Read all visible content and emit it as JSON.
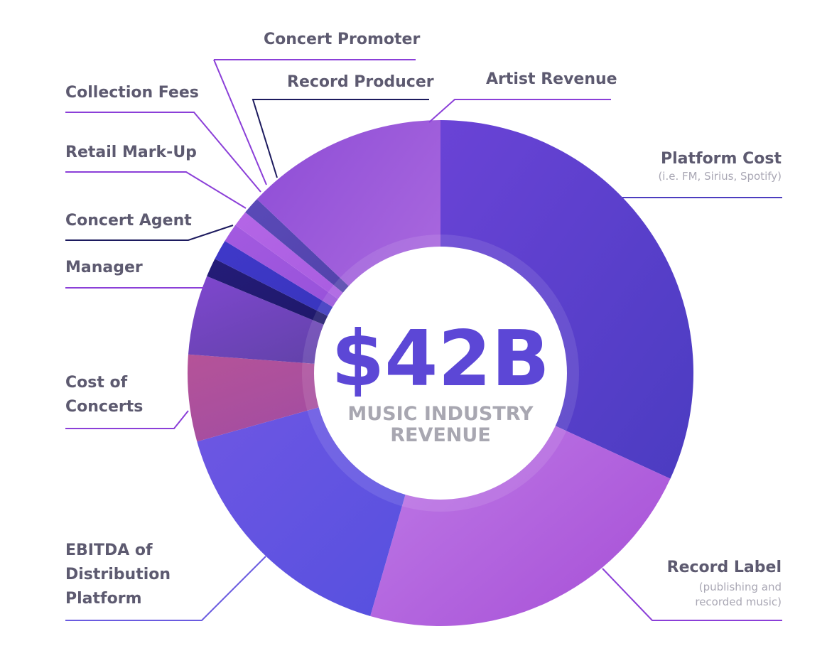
{
  "chart_data": {
    "type": "pie",
    "center": {
      "value": "$42B",
      "subtitle_lines": [
        "MUSIC INDUSTRY",
        "REVENUE"
      ]
    },
    "slices": [
      {
        "label": "Platform Cost",
        "note": "(i.e. FM, Sirius, Spotify)",
        "value": 34.5,
        "colors": [
          "#6a43d6",
          "#4b3cc1"
        ]
      },
      {
        "label": "Record Label",
        "note": "(publishing and recorded music)",
        "note_lines": [
          "(publishing and",
          "recorded music)"
        ],
        "value": 24.5,
        "colors": [
          "#c17fe8",
          "#a64ed6"
        ]
      },
      {
        "label": "EBITDA of Distribution Platform",
        "label_lines": [
          "EBITDA of",
          "Distribution",
          "Platform"
        ],
        "value": 17.5,
        "colors": [
          "#7057e3",
          "#5450df"
        ]
      },
      {
        "label": "Cost of Concerts",
        "label_lines": [
          "Cost of",
          "Concerts"
        ],
        "value": 6.0,
        "colors": [
          "#b55398",
          "#9a4aa6"
        ]
      },
      {
        "label": "Manager",
        "value": 5.5,
        "colors": [
          "#7f47cf",
          "#56409a"
        ]
      },
      {
        "label": "Concert Agent",
        "value": 1.3,
        "colors": [
          "#241c78",
          "#1a1560"
        ]
      },
      {
        "label": "Retail Mark-Up",
        "value": 1.4,
        "colors": [
          "#3f38c9",
          "#3433b5"
        ]
      },
      {
        "label": "Collection Fees",
        "value": 1.3,
        "colors": [
          "#a35ae0",
          "#8e4bd5"
        ]
      },
      {
        "label": "Concert Promoter",
        "value": 1.1,
        "colors": [
          "#b466e6",
          "#9f55dc"
        ]
      },
      {
        "label": "Record Producer",
        "value": 1.2,
        "colors": [
          "#5a4ab8",
          "#4b3d9f"
        ]
      },
      {
        "label": "Artist Revenue",
        "value": 14.0,
        "colors": [
          "#8d4cd6",
          "#b06fe0"
        ]
      }
    ],
    "line_colors": {
      "default": "#8b3fd8",
      "Concert Agent": "#1c1a5e",
      "Record Producer": "#1c1a5e",
      "Platform Cost": "#4c3dbf",
      "EBITDA of Distribution Platform": "#6a5be0"
    }
  }
}
